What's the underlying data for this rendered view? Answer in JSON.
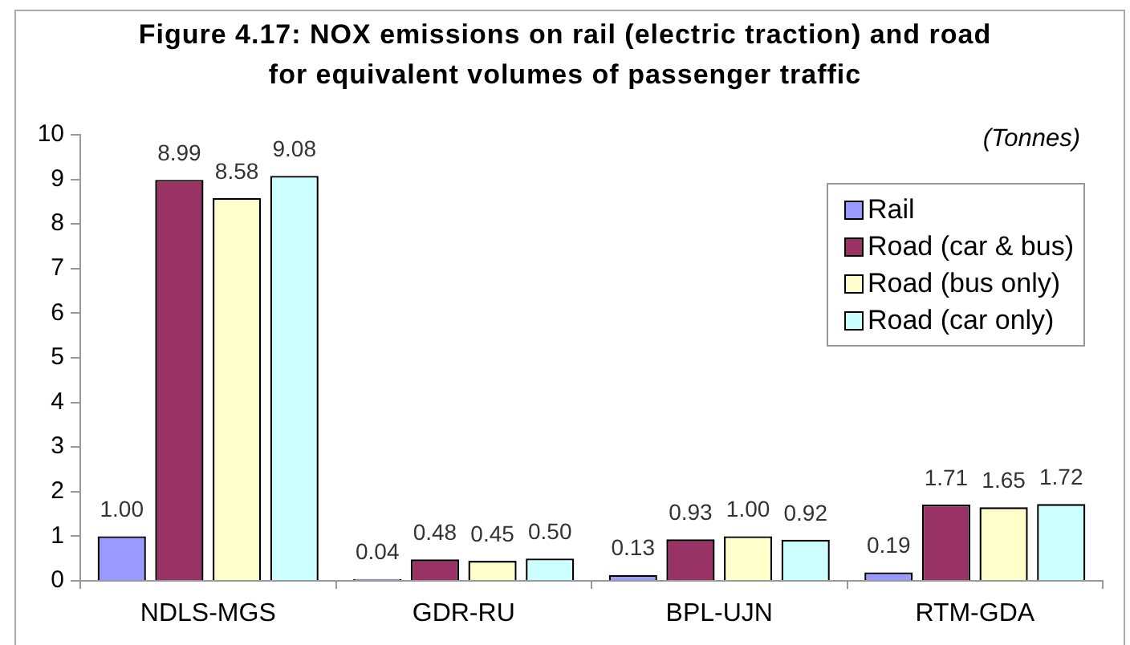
{
  "chart_data": {
    "type": "bar",
    "title": "Figure 4.17: NOX emissions on rail (electric traction) and road for equivalent volumes of passenger traffic",
    "annotations": [
      "(Tonnes)"
    ],
    "categories": [
      "NDLS-MGS",
      "GDR-RU",
      "BPL-UJN",
      "RTM-GDA"
    ],
    "series": [
      {
        "name": "Rail",
        "color": "#9999ff",
        "values": [
          1.0,
          0.04,
          0.13,
          0.19
        ],
        "value_labels": [
          "1.00",
          "0.04",
          "0.13",
          "0.19"
        ]
      },
      {
        "name": "Road (car & bus)",
        "color": "#993366",
        "values": [
          8.99,
          0.48,
          0.93,
          1.71
        ],
        "value_labels": [
          "8.99",
          "0.48",
          "0.93",
          "1.71"
        ]
      },
      {
        "name": "Road (bus only)",
        "color": "#ffffcc",
        "values": [
          8.58,
          0.45,
          1.0,
          1.65
        ],
        "value_labels": [
          "8.58",
          "0.45",
          "1.00",
          "1.65"
        ]
      },
      {
        "name": "Road (car only)",
        "color": "#ccffff",
        "values": [
          9.08,
          0.5,
          0.92,
          1.72
        ],
        "value_labels": [
          "9.08",
          "0.50",
          "0.92",
          "1.72"
        ]
      }
    ],
    "ylim": [
      0,
      10
    ],
    "yticks": [
      0,
      1,
      2,
      3,
      4,
      5,
      6,
      7,
      8,
      9,
      10
    ],
    "legend": "top right"
  }
}
